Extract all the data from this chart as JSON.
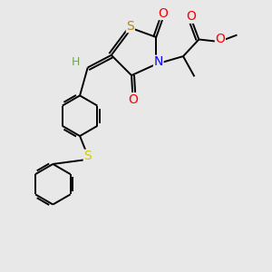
{
  "background_color": "#e8e8e8",
  "atom_colors": {
    "S_ring": "#b8860b",
    "S_bridge": "#cccc00",
    "N": "#0000ff",
    "O": "#ff0000",
    "C": "#000000",
    "H": "#6aa84f"
  },
  "bond_color": "#000000",
  "bond_width": 1.4,
  "font_size": 10,
  "figsize": [
    3.0,
    3.0
  ],
  "dpi": 100
}
